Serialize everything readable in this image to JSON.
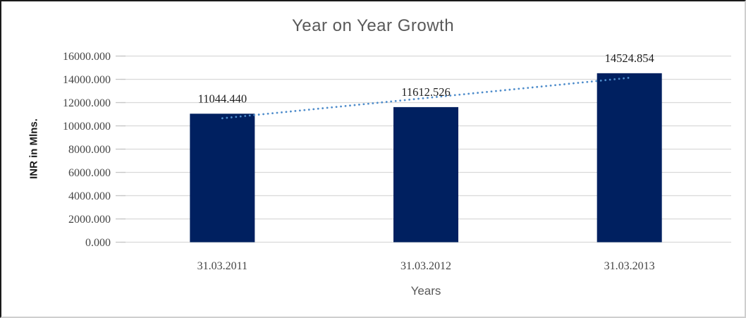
{
  "chart_data": {
    "type": "bar",
    "title": "Year on Year Growth",
    "xlabel": "Years",
    "ylabel": "INR in Mlns.",
    "categories": [
      "31.03.2011",
      "31.03.2012",
      "31.03.2013"
    ],
    "values": [
      11044.44,
      11612.526,
      14524.854
    ],
    "data_labels": [
      "11044.440",
      "11612.526",
      "14524.854"
    ],
    "y_ticks": [
      "0.000",
      "2000.000",
      "4000.000",
      "6000.000",
      "8000.000",
      "10000.000",
      "12000.000",
      "14000.000",
      "16000.000"
    ],
    "y_tick_step": 2000,
    "ylim": [
      0,
      16000
    ],
    "grid": true,
    "legend": "none",
    "trendline": {
      "type": "linear",
      "style": "dotted"
    },
    "colors": {
      "bar": "#002060",
      "trendline": "#4e8ccb",
      "gridline": "#d9d9d9",
      "axis_tick": "#c6c6c6",
      "tick_label": "#454545",
      "title": "#595959",
      "data_label": "#1f1f1f"
    }
  }
}
